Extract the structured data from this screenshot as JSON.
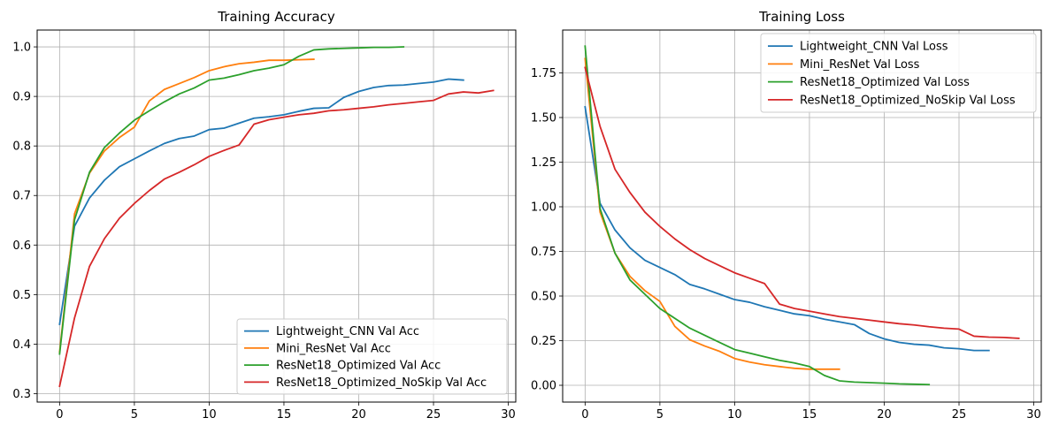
{
  "chart_data": [
    {
      "type": "line",
      "title": "Training Accuracy",
      "xlabel": "",
      "ylabel": "",
      "xlim": [
        -1.5,
        30.5
      ],
      "ylim": [
        0.283,
        1.034
      ],
      "xticks": [
        0,
        5,
        10,
        15,
        20,
        25,
        30
      ],
      "yticks": [
        0.3,
        0.4,
        0.5,
        0.6,
        0.7,
        0.8,
        0.9,
        1.0
      ],
      "ytick_labels": [
        "0.3",
        "0.4",
        "0.5",
        "0.6",
        "0.7",
        "0.8",
        "0.9",
        "1.0"
      ],
      "grid": true,
      "legend_position": "lower-right",
      "series": [
        {
          "name": "Lightweight_CNN Val Acc",
          "color": "#1f77b4",
          "values": [
            0.44,
            0.638,
            0.695,
            0.731,
            0.758,
            0.774,
            0.79,
            0.805,
            0.815,
            0.82,
            0.833,
            0.836,
            0.846,
            0.856,
            0.859,
            0.863,
            0.87,
            0.876,
            0.877,
            0.898,
            0.91,
            0.918,
            0.922,
            0.923,
            0.926,
            0.929,
            0.935,
            0.933
          ]
        },
        {
          "name": "Mini_ResNet Val Acc",
          "color": "#ff7f0e",
          "values": [
            0.384,
            0.663,
            0.745,
            0.79,
            0.817,
            0.838,
            0.891,
            0.914,
            0.926,
            0.938,
            0.952,
            0.96,
            0.966,
            0.969,
            0.973,
            0.973,
            0.974,
            0.975
          ]
        },
        {
          "name": "ResNet18_Optimized Val Acc",
          "color": "#2ca02c",
          "values": [
            0.38,
            0.651,
            0.747,
            0.797,
            0.826,
            0.852,
            0.871,
            0.889,
            0.905,
            0.917,
            0.933,
            0.937,
            0.944,
            0.952,
            0.957,
            0.964,
            0.981,
            0.994,
            0.996,
            0.997,
            0.998,
            0.999,
            0.999,
            1.0
          ]
        },
        {
          "name": "ResNet18_Optimized_NoSkip Val Acc",
          "color": "#d62728",
          "values": [
            0.315,
            0.453,
            0.557,
            0.613,
            0.654,
            0.684,
            0.71,
            0.733,
            0.747,
            0.762,
            0.779,
            0.791,
            0.802,
            0.844,
            0.853,
            0.858,
            0.863,
            0.866,
            0.871,
            0.873,
            0.876,
            0.879,
            0.883,
            0.886,
            0.889,
            0.892,
            0.905,
            0.909,
            0.907,
            0.912
          ]
        }
      ]
    },
    {
      "type": "line",
      "title": "Training Loss",
      "xlabel": "",
      "ylabel": "",
      "xlim": [
        -1.5,
        30.5
      ],
      "ylim": [
        -0.094,
        1.99
      ],
      "xticks": [
        0,
        5,
        10,
        15,
        20,
        25,
        30
      ],
      "yticks": [
        0.0,
        0.25,
        0.5,
        0.75,
        1.0,
        1.25,
        1.5,
        1.75
      ],
      "ytick_labels": [
        "0.00",
        "0.25",
        "0.50",
        "0.75",
        "1.00",
        "1.25",
        "1.50",
        "1.75"
      ],
      "grid": true,
      "legend_position": "upper-right",
      "series": [
        {
          "name": "Lightweight_CNN Val Loss",
          "color": "#1f77b4",
          "values": [
            1.56,
            1.02,
            0.87,
            0.77,
            0.7,
            0.66,
            0.62,
            0.565,
            0.54,
            0.51,
            0.48,
            0.465,
            0.44,
            0.42,
            0.4,
            0.39,
            0.37,
            0.355,
            0.34,
            0.29,
            0.26,
            0.24,
            0.23,
            0.225,
            0.21,
            0.205,
            0.195,
            0.195
          ]
        },
        {
          "name": "Mini_ResNet Val Loss",
          "color": "#ff7f0e",
          "values": [
            1.83,
            0.97,
            0.74,
            0.61,
            0.53,
            0.47,
            0.33,
            0.255,
            0.22,
            0.19,
            0.15,
            0.13,
            0.115,
            0.105,
            0.095,
            0.09,
            0.09,
            0.09
          ]
        },
        {
          "name": "ResNet18_Optimized Val Loss",
          "color": "#2ca02c",
          "values": [
            1.9,
            0.99,
            0.74,
            0.59,
            0.51,
            0.43,
            0.375,
            0.32,
            0.28,
            0.24,
            0.2,
            0.18,
            0.16,
            0.14,
            0.125,
            0.105,
            0.055,
            0.025,
            0.018,
            0.015,
            0.012,
            0.008,
            0.006,
            0.004
          ]
        },
        {
          "name": "ResNet18_Optimized_NoSkip Val Loss",
          "color": "#d62728",
          "values": [
            1.78,
            1.45,
            1.21,
            1.08,
            0.97,
            0.89,
            0.82,
            0.76,
            0.71,
            0.67,
            0.63,
            0.6,
            0.57,
            0.455,
            0.43,
            0.415,
            0.4,
            0.385,
            0.375,
            0.365,
            0.355,
            0.345,
            0.338,
            0.328,
            0.32,
            0.315,
            0.275,
            0.27,
            0.268,
            0.263
          ]
        }
      ]
    }
  ]
}
